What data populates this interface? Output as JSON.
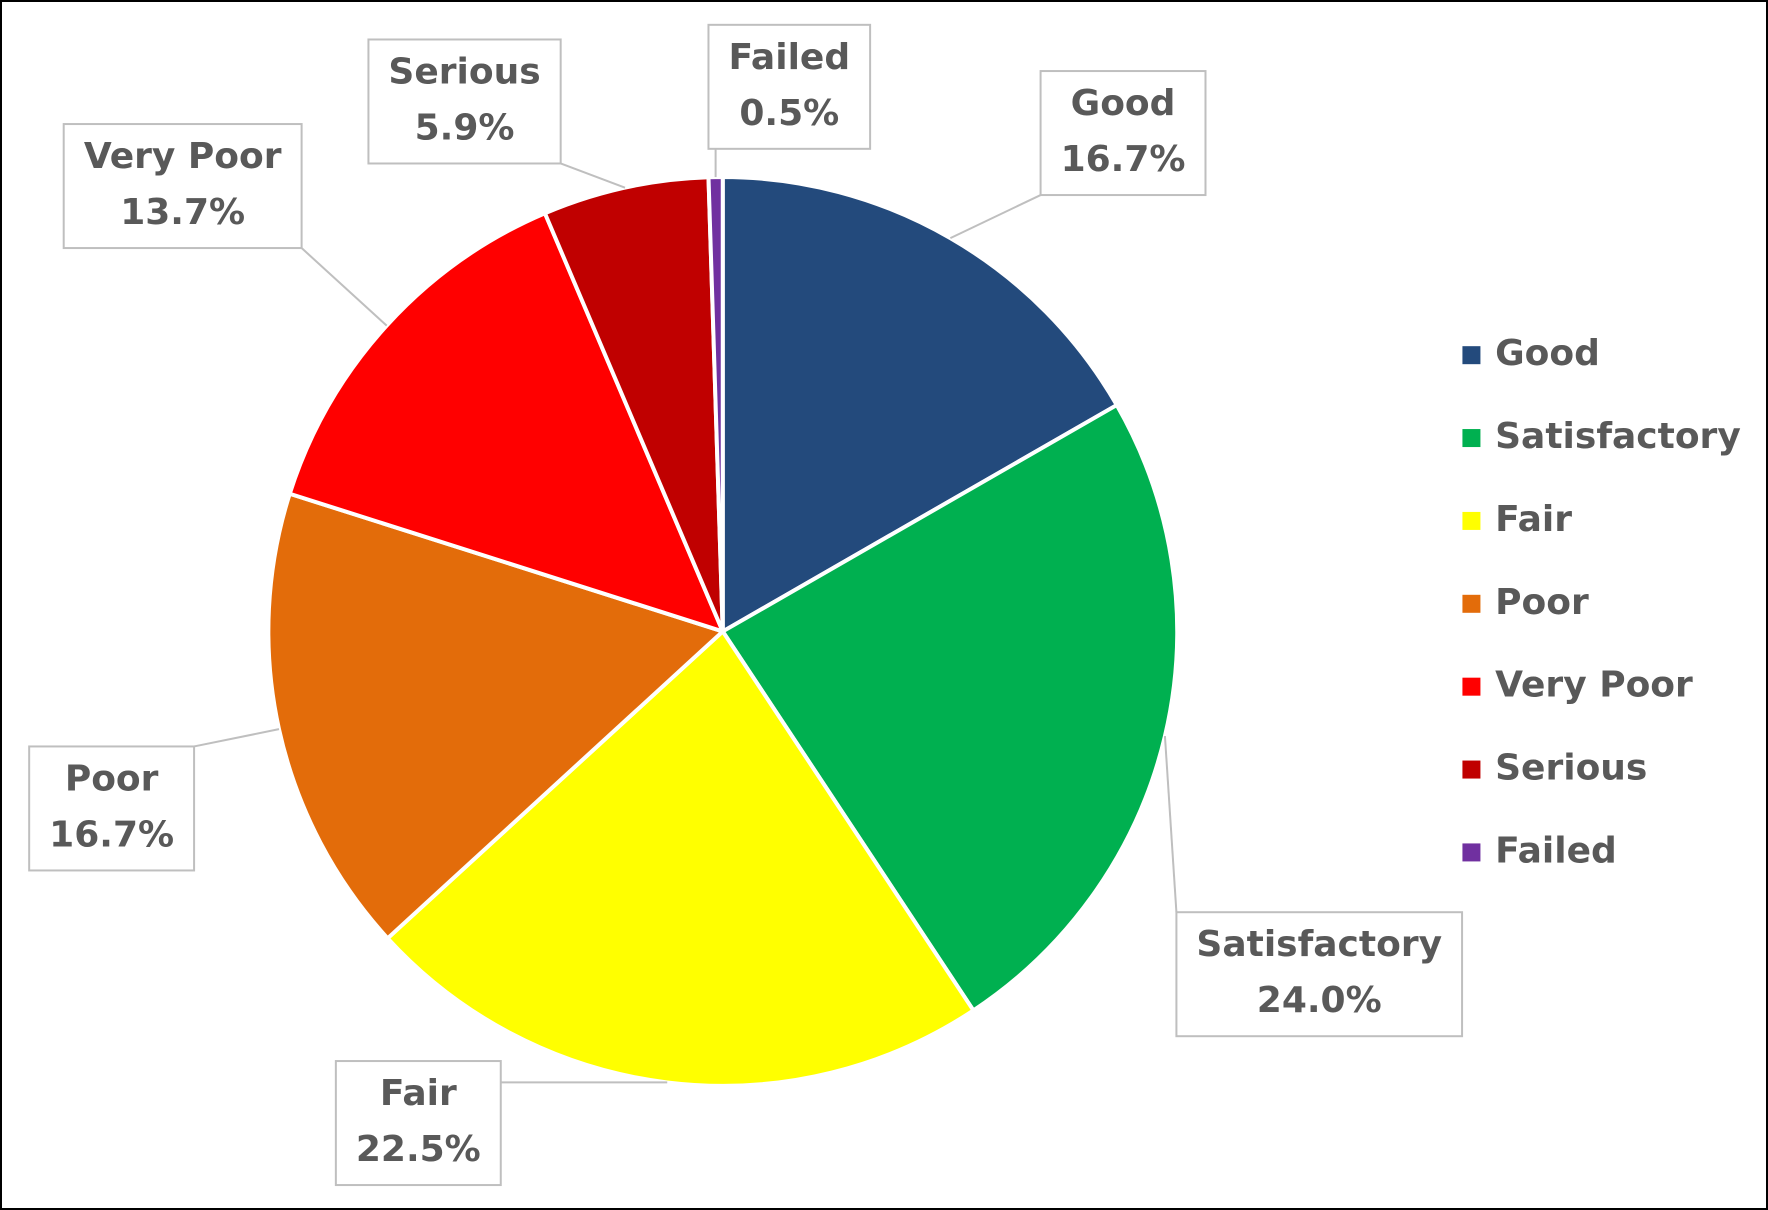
{
  "chart_data": {
    "type": "pie",
    "categories": [
      "Good",
      "Satisfactory",
      "Fair",
      "Poor",
      "Very Poor",
      "Serious",
      "Failed"
    ],
    "values": [
      16.7,
      24.0,
      22.5,
      16.7,
      13.7,
      5.9,
      0.5
    ],
    "value_labels": [
      "16.7%",
      "24.0%",
      "22.5%",
      "16.7%",
      "13.7%",
      "5.9%",
      "0.5%"
    ],
    "colors": [
      "#234a7c",
      "#00b050",
      "#ffff00",
      "#e36c0a",
      "#ff0000",
      "#c00000",
      "#7030a0"
    ],
    "legend": "right"
  }
}
